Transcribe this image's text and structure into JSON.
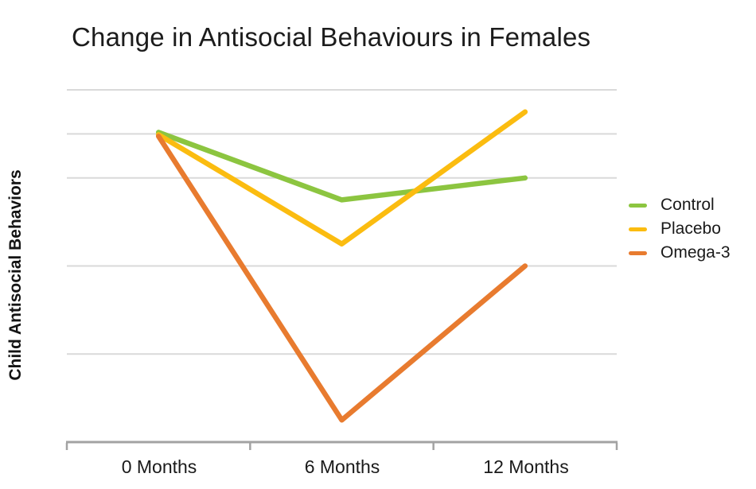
{
  "title": "Change in Antisocial Behaviours in Females",
  "y_axis_label": "Child Antisocial Behaviors",
  "x_axis": {
    "labels": [
      "0 Months",
      "6 Months",
      "12 Months"
    ]
  },
  "legend": {
    "position": "right",
    "items": [
      "Control",
      "Placebo",
      "Omega-3"
    ]
  },
  "colors": {
    "control": "#8CC540",
    "placebo": "#FBBC10",
    "omega3": "#E87B2F",
    "gridline": "#D9D9D9",
    "axis": "#A3A3A3",
    "text": "#1a1a1a",
    "background": "#FFFFFF"
  },
  "chart_data": {
    "type": "line",
    "title": "Change in Antisocial Behaviours in Females",
    "xlabel": "",
    "ylabel": "Child Antisocial Behaviors",
    "categories": [
      "0 Months",
      "6 Months",
      "12 Months"
    ],
    "series": [
      {
        "name": "Control",
        "color": "#8CC540",
        "values": [
          3.5,
          2.75,
          3.0
        ]
      },
      {
        "name": "Placebo",
        "color": "#FBBC10",
        "values": [
          3.5,
          2.25,
          3.75
        ]
      },
      {
        "name": "Omega-3",
        "color": "#E87B2F",
        "values": [
          3.5,
          0.25,
          2.0
        ]
      }
    ],
    "ylim": [
      0,
      4
    ],
    "gridlines_at": [
      1,
      2,
      3,
      3.5,
      4
    ],
    "y_tick_labels_visible": false,
    "grid": true,
    "legend_position": "right"
  }
}
